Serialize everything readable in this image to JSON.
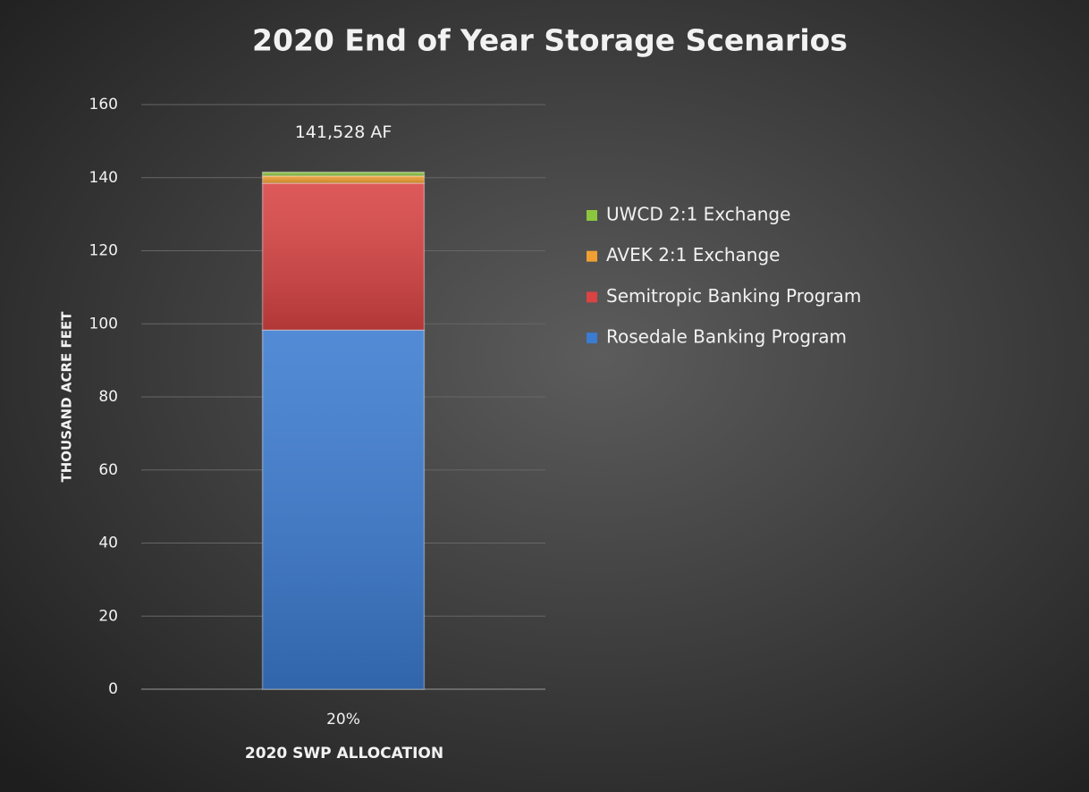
{
  "chart_data": {
    "type": "stacked_bar",
    "title": "2020 End of Year Storage Scenarios",
    "x_label": "2020 SWP ALLOCATION",
    "y_label": "THOUSAND ACRE FEET",
    "categories": [
      "20%"
    ],
    "series": [
      {
        "name": "Rosedale Banking Program",
        "color": "#3b7bd0",
        "values": [
          98.3
        ]
      },
      {
        "name": "Semitropic Banking Program",
        "color": "#d94343",
        "values": [
          40.2
        ]
      },
      {
        "name": "AVEK 2:1 Exchange",
        "color": "#f0a032",
        "values": [
          2.0
        ]
      },
      {
        "name": "UWCD 2:1 Exchange",
        "color": "#8cc63f",
        "values": [
          1.0
        ]
      }
    ],
    "annotation": "141,528 AF",
    "ylim": [
      0,
      160
    ],
    "yticks": [
      0,
      20,
      40,
      60,
      80,
      100,
      120,
      140,
      160
    ],
    "grid": true,
    "legend": "right"
  }
}
